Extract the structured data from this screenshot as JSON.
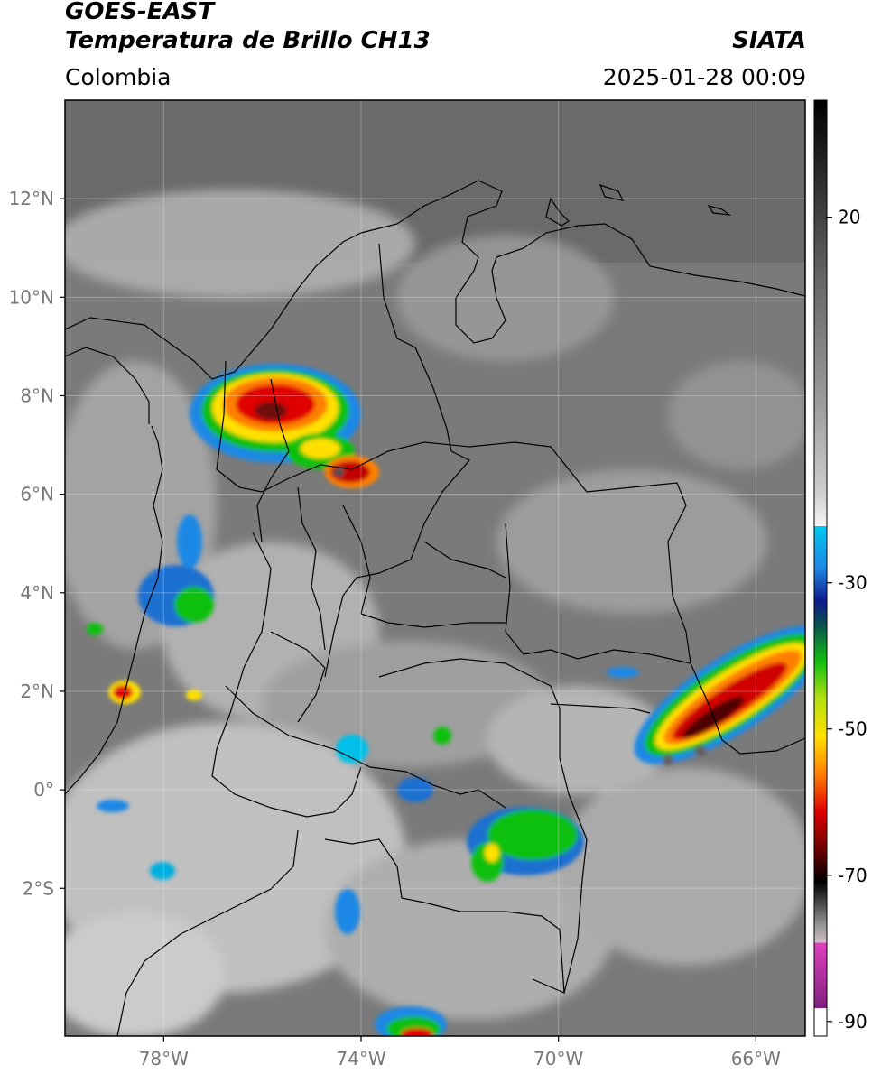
{
  "header": {
    "satellite": "GOES-EAST",
    "product": "Temperatura de Brillo CH13",
    "organization": "SIATA",
    "region": "Colombia",
    "timestamp": "2025-01-28 00:09"
  },
  "map": {
    "lon_range": [
      -80,
      -65
    ],
    "lat_range": [
      -5,
      14
    ],
    "lon_ticks": [
      {
        "value": -78,
        "label": "78°W"
      },
      {
        "value": -74,
        "label": "74°W"
      },
      {
        "value": -70,
        "label": "70°W"
      },
      {
        "value": -66,
        "label": "66°W"
      }
    ],
    "lat_ticks": [
      {
        "value": 12,
        "label": "12°N"
      },
      {
        "value": 10,
        "label": "10°N"
      },
      {
        "value": 8,
        "label": "8°N"
      },
      {
        "value": 6,
        "label": "6°N"
      },
      {
        "value": 4,
        "label": "4°N"
      },
      {
        "value": 2,
        "label": "2°N"
      },
      {
        "value": 0,
        "label": "0°"
      },
      {
        "value": -2,
        "label": "2°S"
      }
    ]
  },
  "colorbar": {
    "range": [
      -92,
      36
    ],
    "ticks": [
      {
        "value": 20,
        "label": "20"
      },
      {
        "value": -30,
        "label": "-30"
      },
      {
        "value": -50,
        "label": "-50"
      },
      {
        "value": -70,
        "label": "-70"
      },
      {
        "value": -90,
        "label": "-90"
      }
    ]
  }
}
